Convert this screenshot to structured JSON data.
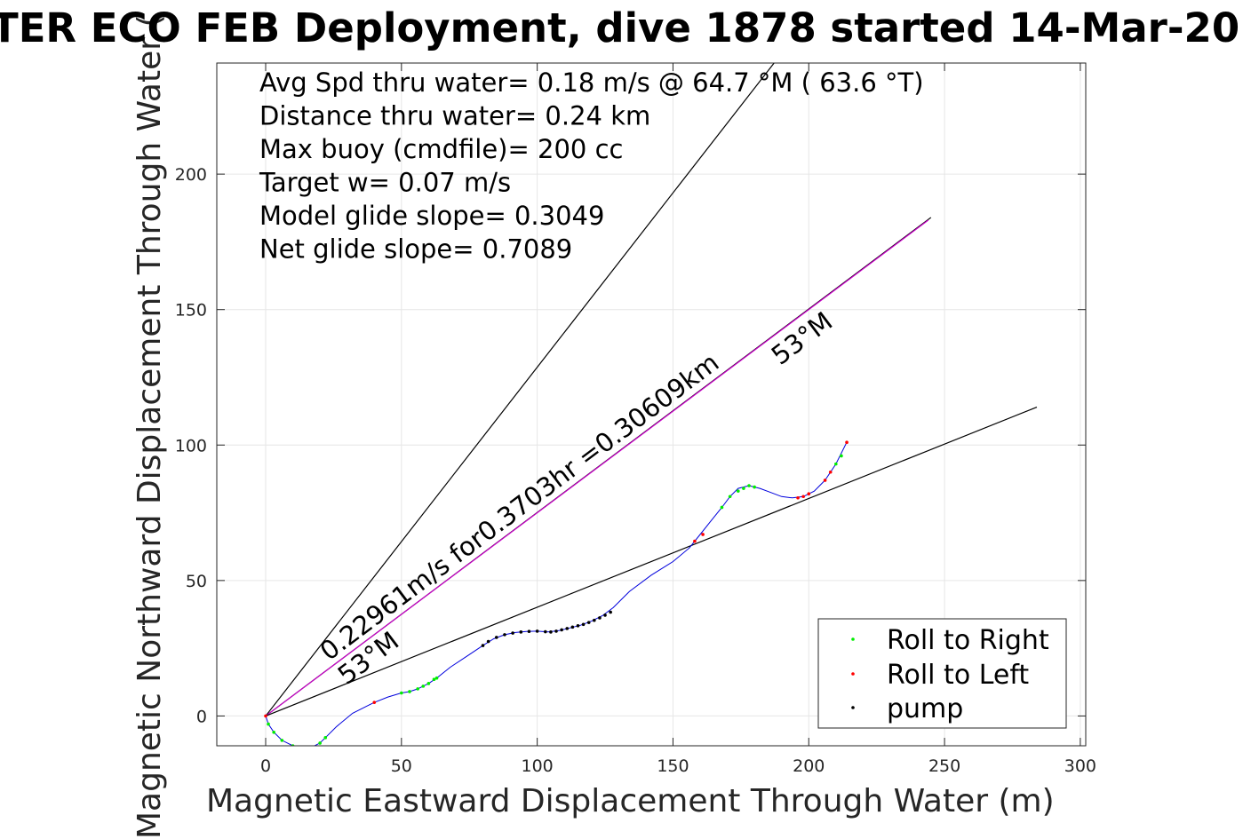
{
  "chart_data": {
    "type": "line",
    "title": "TER ECO FEB Deployment, dive 1878 started 14-Mar-20",
    "xlabel": "Magnetic Eastward Displacement Through Water (m)",
    "ylabel": "Magnetic Northward Displacement Through Water (",
    "xlim": [
      -18,
      302
    ],
    "ylim": [
      -11,
      241
    ],
    "xticks": [
      0,
      50,
      100,
      150,
      200,
      250,
      300
    ],
    "yticks": [
      0,
      50,
      100,
      150,
      200
    ],
    "grid": true,
    "legend_position": "bottom-right",
    "annotations": [
      "Avg Spd thru water=  0.18 m/s @  64.7 °M ( 63.6 °T)",
      "Distance thru water=  0.24 km",
      "Max buoy (cmdfile)= 200 cc",
      "Target w= 0.07 m/s",
      "Model glide slope= 0.3049",
      "Net glide slope= 0.7089"
    ],
    "line_labels": {
      "course": "0.22961m/s for0.3703hr =0.30609km",
      "heading_upper": "53°M",
      "heading_lower": "53°M"
    },
    "reference_lines": [
      {
        "x": [
          0,
          188
        ],
        "y": [
          0,
          242
        ],
        "color": "#000000"
      },
      {
        "x": [
          0,
          245
        ],
        "y": [
          0,
          184
        ],
        "color": "#000000"
      },
      {
        "x": [
          0,
          244
        ],
        "y": [
          0,
          183
        ],
        "color": "#cc00cc"
      },
      {
        "x": [
          0,
          284
        ],
        "y": [
          0,
          114
        ],
        "color": "#000000"
      }
    ],
    "track": {
      "name": "track",
      "color": "#0000dd",
      "x": [
        0,
        1,
        3,
        6,
        10,
        14,
        17,
        20,
        22,
        26,
        32,
        38,
        40,
        45,
        50,
        53,
        56,
        60,
        63,
        68,
        74,
        80,
        84,
        88,
        92,
        96,
        100,
        104,
        108,
        112,
        116,
        120,
        124,
        128,
        134,
        142,
        150,
        156,
        160,
        164,
        168,
        171,
        174,
        178,
        182,
        186,
        190,
        194,
        198,
        202,
        206,
        210,
        214
      ],
      "y": [
        0,
        -3,
        -6,
        -9,
        -11,
        -12,
        -11.5,
        -10,
        -8,
        -4,
        1,
        4,
        5,
        7,
        8.5,
        9,
        10,
        12,
        14,
        18,
        22,
        26,
        28.5,
        30,
        30.8,
        31.2,
        31.3,
        31,
        31.5,
        32.5,
        33.5,
        35,
        37,
        40,
        46,
        52,
        57,
        62,
        67,
        72,
        77,
        81,
        84,
        85,
        84,
        82.5,
        81,
        80.5,
        81,
        83,
        87,
        93,
        101
      ]
    },
    "series": [
      {
        "name": "Roll to Right",
        "color": "#00ee00",
        "x": [
          1,
          3,
          6,
          10,
          14,
          17,
          20,
          22,
          50,
          53,
          56,
          58,
          60,
          62,
          63,
          168,
          171,
          174,
          176,
          178,
          180,
          210,
          212
        ],
        "y": [
          -3,
          -6,
          -9,
          -11,
          -12,
          -11.5,
          -10,
          -8,
          8.5,
          9,
          10,
          11,
          12,
          13.5,
          14,
          77,
          81,
          83,
          84,
          85,
          84.5,
          93,
          96
        ]
      },
      {
        "name": "Roll to Left",
        "color": "#ff0000",
        "x": [
          0,
          40,
          158,
          161,
          196,
          198,
          200,
          206,
          208,
          214
        ],
        "y": [
          0,
          5,
          64.5,
          67,
          80.5,
          81,
          82,
          87,
          90,
          101
        ]
      },
      {
        "name": "pump",
        "color": "#000000",
        "x": [
          80,
          82,
          85,
          88,
          91,
          94,
          97,
          100,
          103,
          105,
          107,
          109,
          111,
          113,
          115,
          117,
          119,
          121,
          123,
          125,
          127
        ],
        "y": [
          26,
          27.5,
          29,
          30,
          30.6,
          31,
          31.2,
          31.3,
          31.1,
          31,
          31.3,
          31.8,
          32.3,
          32.8,
          33.3,
          33.8,
          34.5,
          35.3,
          36.2,
          37.2,
          38.3
        ]
      }
    ]
  }
}
